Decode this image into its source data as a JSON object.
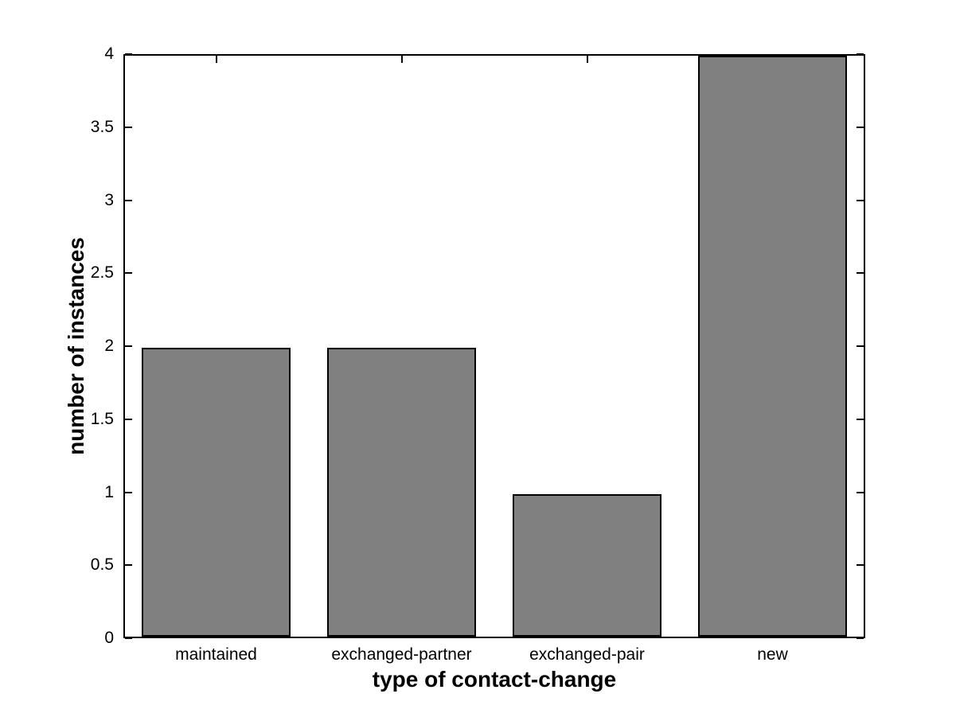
{
  "chart_data": {
    "type": "bar",
    "title": "",
    "xlabel": "type of contact-change",
    "ylabel": "number of instances",
    "categories": [
      "maintained",
      "exchanged-partner",
      "exchanged-pair",
      "new"
    ],
    "values": [
      2,
      2,
      1,
      4
    ],
    "bar_positions": [
      1,
      2,
      3,
      4
    ],
    "bar_width": 0.8,
    "xlim": [
      0.5,
      4.5
    ],
    "ylim": [
      0,
      4
    ],
    "yticks": [
      0,
      0.5,
      1,
      1.5,
      2,
      2.5,
      3,
      3.5,
      4
    ],
    "ytick_labels": [
      "0",
      "0.5",
      "1",
      "1.5",
      "2",
      "2.5",
      "3",
      "3.5",
      "4"
    ],
    "bar_color": "#808080",
    "bar_edge_color": "#000000",
    "axis_color": "#000000",
    "background_color": "#ffffff",
    "grid": false,
    "legend": null,
    "tick_direction": "in"
  }
}
